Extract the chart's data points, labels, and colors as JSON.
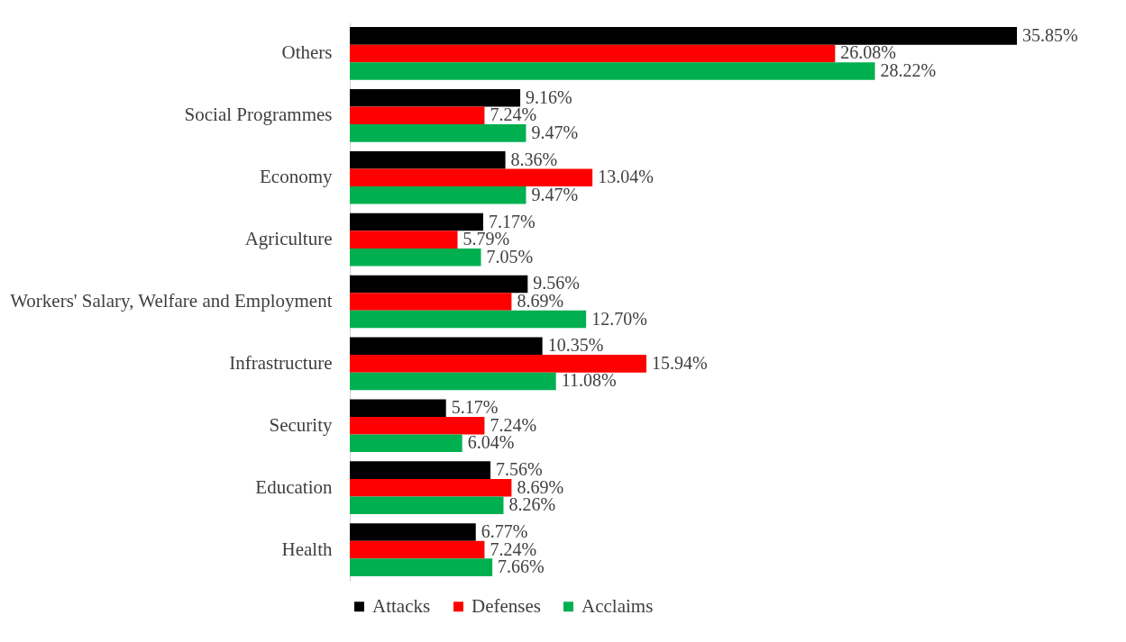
{
  "chart_data": {
    "type": "bar",
    "orientation": "horizontal",
    "legend": "bottom",
    "categories": [
      "Others",
      "Social Programmes",
      "Economy",
      "Agriculture",
      "Workers' Salary, Welfare and Employment",
      "Infrastructure",
      "Security",
      "Education",
      "Health"
    ],
    "series": [
      {
        "name": "Attacks",
        "color": "#000000",
        "values": [
          35.85,
          9.16,
          8.36,
          7.17,
          9.56,
          10.35,
          5.17,
          7.56,
          6.77
        ],
        "value_labels": [
          "35.85%",
          "9.16%",
          "8.36%",
          "7.17%",
          "9.56%",
          "10.35%",
          "5.17%",
          "7.56%",
          "6.77%"
        ]
      },
      {
        "name": "Defenses",
        "color": "#ff0000",
        "values": [
          26.08,
          7.24,
          13.04,
          5.79,
          8.69,
          15.94,
          7.24,
          8.69,
          7.24
        ],
        "value_labels": [
          "26.08%",
          "7.24%",
          "13.04%",
          "5.79%",
          "8.69%",
          "15.94%",
          "7.24%",
          "8.69%",
          "7.24%"
        ]
      },
      {
        "name": "Acclaims",
        "color": "#00b050",
        "values": [
          28.22,
          9.47,
          9.47,
          7.05,
          12.7,
          11.08,
          6.04,
          8.26,
          7.66
        ],
        "value_labels": [
          "28.22%",
          "9.47%",
          "9.47%",
          "7.05%",
          "12.70%",
          "11.08%",
          "6.04%",
          "8.26%",
          "7.66%"
        ]
      }
    ]
  }
}
